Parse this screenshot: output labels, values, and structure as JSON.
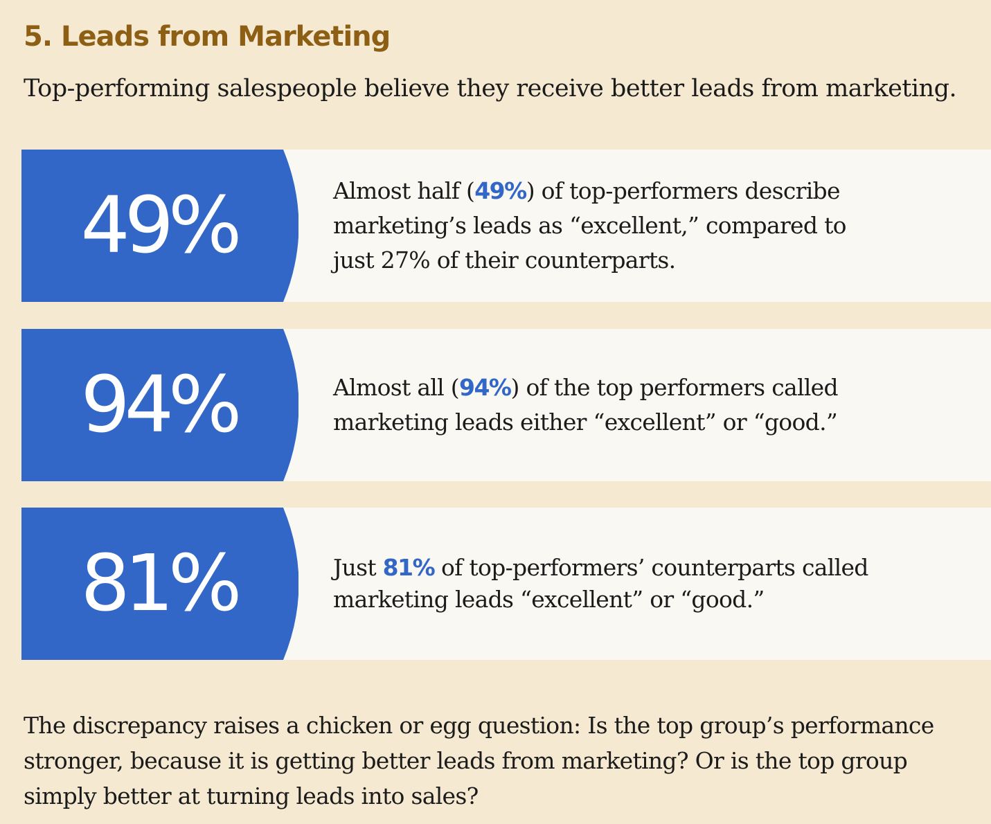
{
  "heading": "5. Leads from Marketing",
  "subtitle": "Top-performing salespeople believe they receive better leads from marketing.",
  "colors": {
    "background": "#f5e9d1",
    "panel": "#f9f8f3",
    "accent_blue": "#3367c7",
    "heading_gold": "#8d5f14"
  },
  "stats": [
    {
      "number": "49%",
      "text_before": "Almost half (",
      "highlight": "49%",
      "text_after": ") of top-performers describe marketing’s leads  as “excellent,” compared to just 27% of their counterparts."
    },
    {
      "number": "94%",
      "text_before": "Almost all (",
      "highlight": "94%",
      "text_after": ") of the top performers called marketing leads either “excellent” or “good.”"
    },
    {
      "number": "81%",
      "text_before": "Just ",
      "highlight": "81%",
      "text_after": " of top-performers’ counterparts called marketing leads “excellent” or “good.”"
    }
  ],
  "closing": "The discrepancy raises a chicken or egg question: Is the top group’s performance stronger, because it is getting better leads from marketing? Or is the top group simply better at turning leads into sales?"
}
